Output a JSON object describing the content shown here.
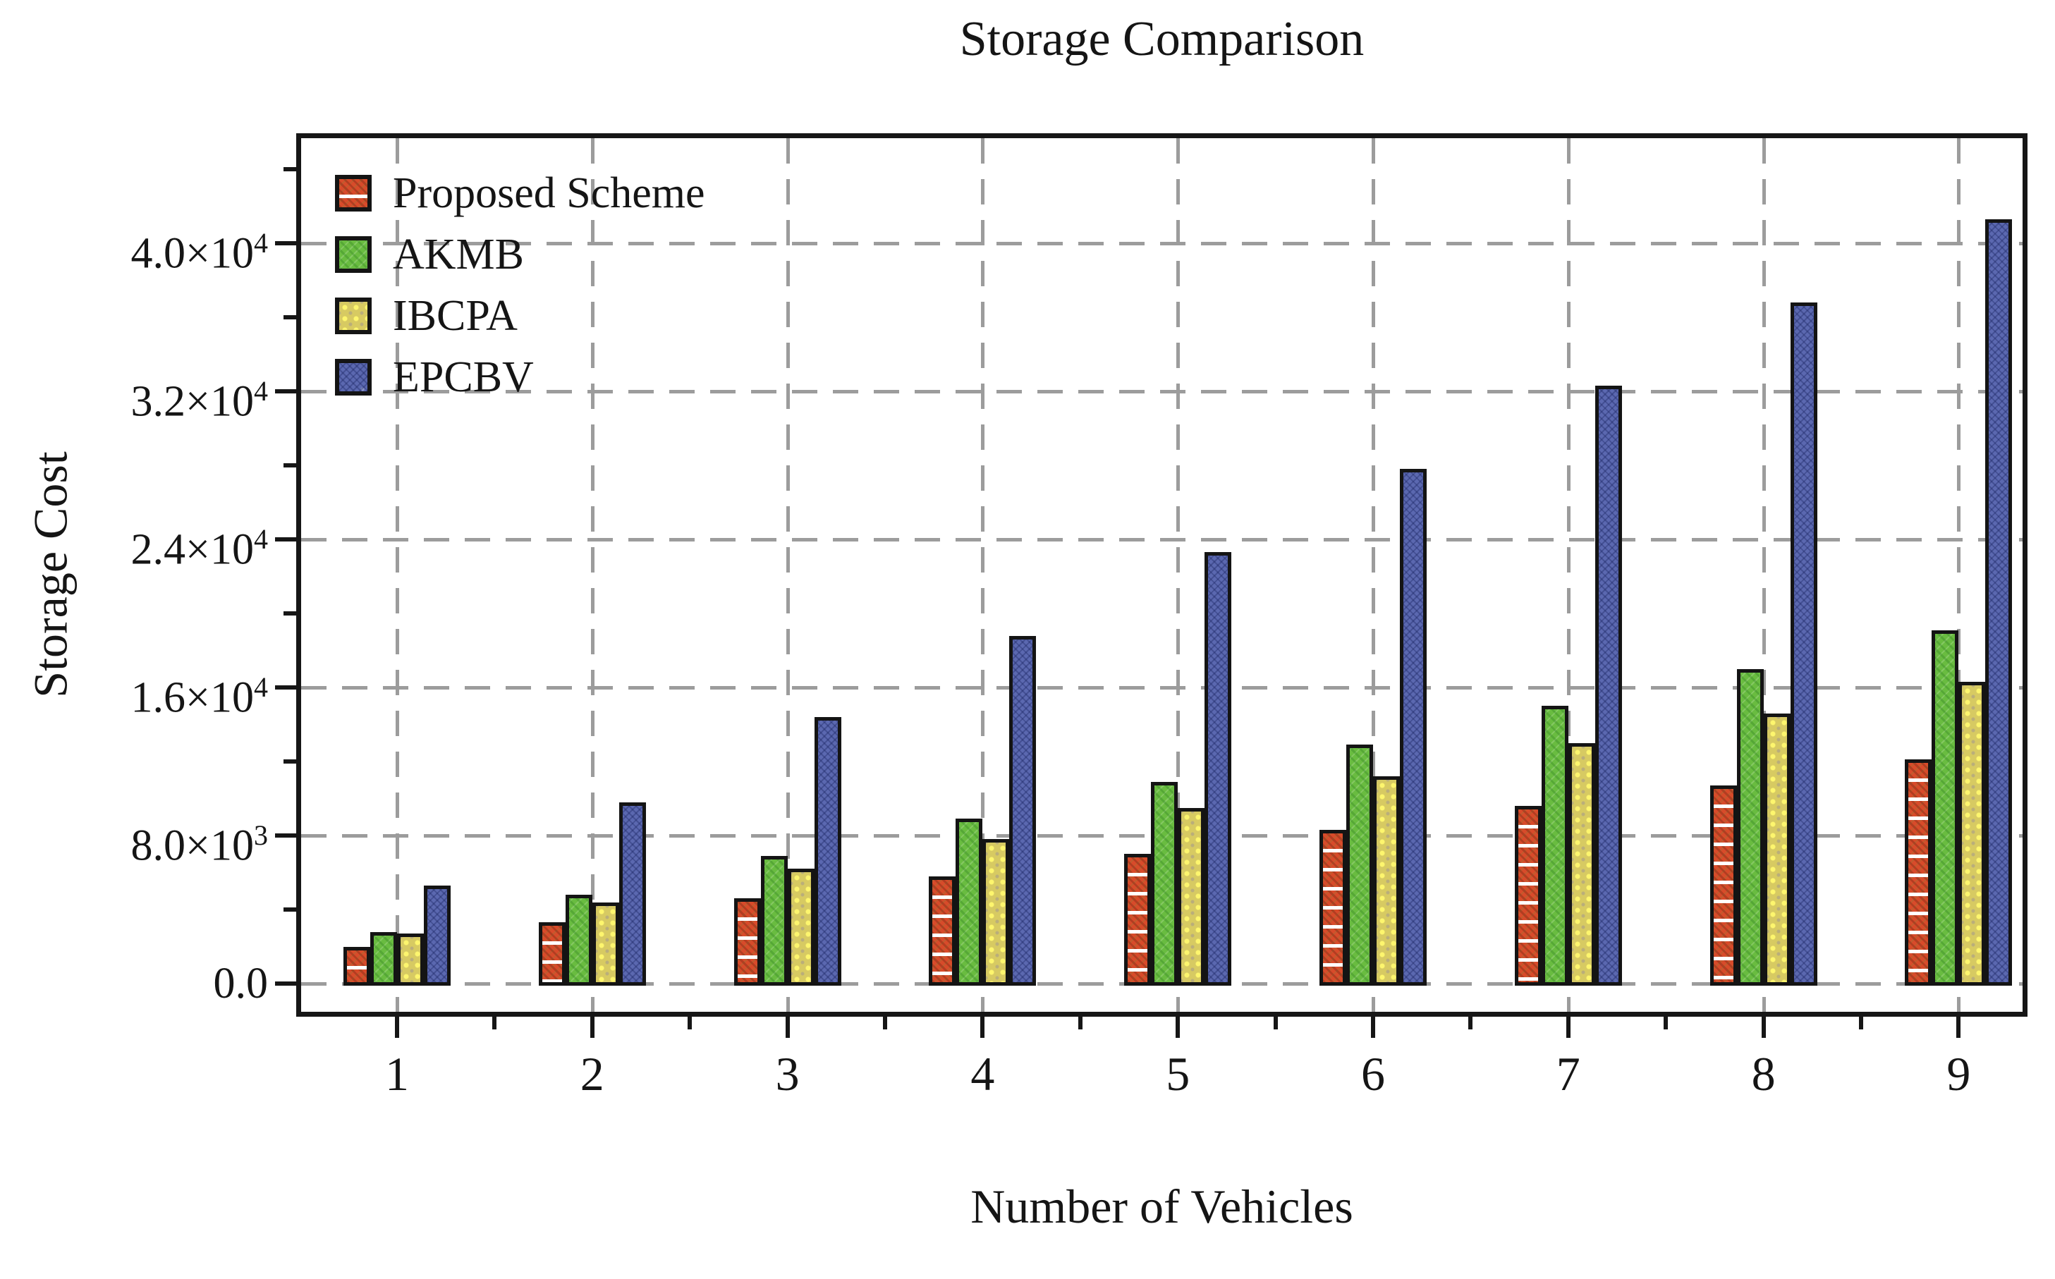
{
  "figure": {
    "title": "Storage Comparison",
    "background": "#ffffff",
    "frame_color": "#161616",
    "grid_color": "#9c9c9c",
    "grid_style": "dashed",
    "y_axis": {
      "label": "Storage Cost",
      "ticks": [
        {
          "value": 0,
          "base": "0.0",
          "exp": null
        },
        {
          "value": 8000,
          "base": "8.0×10",
          "exp": "3"
        },
        {
          "value": 16000,
          "base": "1.6×10",
          "exp": "4"
        },
        {
          "value": 24000,
          "base": "2.4×10",
          "exp": "4"
        },
        {
          "value": 32000,
          "base": "3.2×10",
          "exp": "4"
        },
        {
          "value": 40000,
          "base": "4.0×10",
          "exp": "4"
        }
      ],
      "minor_tick_values": [
        4000,
        12000,
        20000,
        28000,
        36000,
        44000
      ]
    },
    "x_axis": {
      "label": "Number of Vehicles",
      "ticks": [
        "1",
        "2",
        "3",
        "4",
        "5",
        "6",
        "7",
        "8",
        "9"
      ]
    }
  },
  "chart_data": {
    "type": "bar",
    "title": "Storage Comparison",
    "xlabel": "Number of Vehicles",
    "ylabel": "Storage Cost",
    "categories": [
      1,
      2,
      3,
      4,
      5,
      6,
      7,
      8,
      9
    ],
    "ylim": [
      -1790,
      45950
    ],
    "ytick_values": [
      0,
      8000,
      16000,
      24000,
      32000,
      40000
    ],
    "grid": "dashed gray horizontal at major y ticks and vertical at each category",
    "legend_position": "upper-left-inside",
    "series": [
      {
        "name": "Proposed Scheme",
        "key": "proposed",
        "color": "#d84b2a",
        "pattern": "red with white horizontal stripes and dark crosshatch",
        "values": [
          2000,
          3300,
          4600,
          5800,
          7000,
          8300,
          9600,
          10700,
          12100
        ]
      },
      {
        "name": "AKMB",
        "key": "akmb",
        "color": "#69bc40",
        "pattern": "green with fine diagonal hatch",
        "values": [
          2800,
          4800,
          6900,
          8900,
          10900,
          12900,
          15000,
          17000,
          19100
        ]
      },
      {
        "name": "IBCPA",
        "key": "ibcpa",
        "color": "#d7ca62",
        "pattern": "yellow with dot texture",
        "values": [
          2700,
          4400,
          6200,
          7800,
          9500,
          11200,
          13000,
          14600,
          16300
        ]
      },
      {
        "name": "EPCBV",
        "key": "epcbv",
        "color": "#5b68b0",
        "pattern": "blue with fine crosshatch",
        "values": [
          5300,
          9800,
          14400,
          18800,
          23300,
          27800,
          32300,
          36800,
          41300
        ]
      }
    ]
  }
}
